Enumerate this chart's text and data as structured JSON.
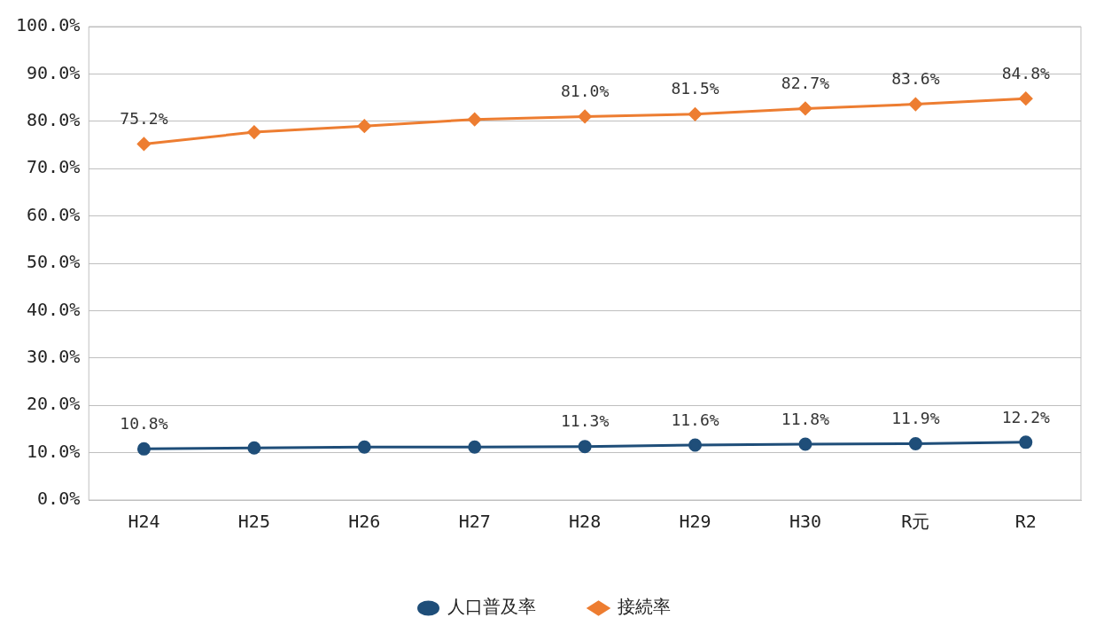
{
  "chart_data": {
    "type": "line",
    "categories": [
      "H24",
      "H25",
      "H26",
      "H27",
      "H28",
      "H29",
      "H30",
      "R元",
      "R2"
    ],
    "series": [
      {
        "name": "人口普及率",
        "color": "#1f4e79",
        "marker": "circle",
        "values": [
          10.8,
          11.0,
          11.2,
          11.2,
          11.3,
          11.6,
          11.8,
          11.9,
          12.2
        ],
        "value_labels": [
          "10.8%",
          null,
          null,
          null,
          "11.3%",
          "11.6%",
          "11.8%",
          "11.9%",
          "12.2%"
        ]
      },
      {
        "name": "接続率",
        "color": "#ed7d31",
        "marker": "diamond",
        "values": [
          75.2,
          77.7,
          79.0,
          80.4,
          81.0,
          81.5,
          82.7,
          83.6,
          84.8
        ],
        "value_labels": [
          "75.2%",
          null,
          null,
          null,
          "81.0%",
          "81.5%",
          "82.7%",
          "83.6%",
          "84.8%"
        ]
      }
    ],
    "ylim": [
      0,
      100
    ],
    "yticks": [
      {
        "value": 0,
        "label": "0.0%"
      },
      {
        "value": 10,
        "label": "10.0%"
      },
      {
        "value": 20,
        "label": "20.0%"
      },
      {
        "value": 30,
        "label": "30.0%"
      },
      {
        "value": 40,
        "label": "40.0%"
      },
      {
        "value": 50,
        "label": "50.0%"
      },
      {
        "value": 60,
        "label": "60.0%"
      },
      {
        "value": 70,
        "label": "70.0%"
      },
      {
        "value": 80,
        "label": "80.0%"
      },
      {
        "value": 90,
        "label": "90.0%"
      },
      {
        "value": 100,
        "label": "100.0%"
      }
    ],
    "grid": "y",
    "legend": "bottom",
    "line_style": "solid"
  }
}
